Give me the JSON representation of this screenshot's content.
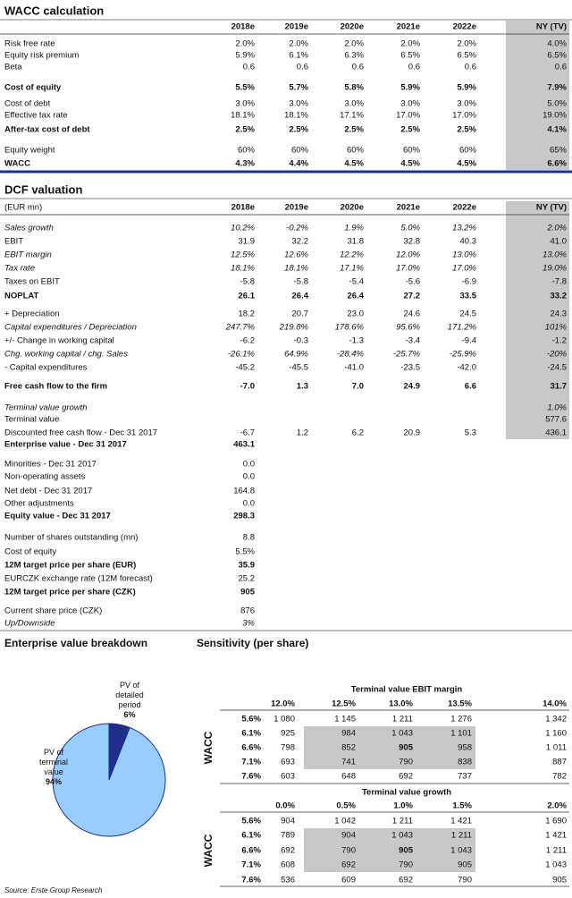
{
  "wacc": {
    "title": "WACC calculation",
    "columns": [
      "2018e",
      "2019e",
      "2020e",
      "2021e",
      "2022e",
      "NY (TV)"
    ],
    "rows": [
      {
        "label": "Risk free rate",
        "values": [
          "2.0%",
          "2.0%",
          "2.0%",
          "2.0%",
          "2.0%",
          "4.0%"
        ]
      },
      {
        "label": "Equity risk premium",
        "values": [
          "5.9%",
          "6.1%",
          "6.3%",
          "6.5%",
          "6.5%",
          "6.5%"
        ]
      },
      {
        "label": "Beta",
        "values": [
          "0.6",
          "0.6",
          "0.6",
          "0.6",
          "0.6",
          "0.6"
        ]
      },
      {
        "label": "Cost of equity",
        "values": [
          "5.5%",
          "5.7%",
          "5.8%",
          "5.9%",
          "5.9%",
          "7.9%"
        ]
      },
      {
        "label": "Cost of debt",
        "values": [
          "3.0%",
          "3.0%",
          "3.0%",
          "3.0%",
          "3.0%",
          "5.0%"
        ]
      },
      {
        "label": "Effective tax rate",
        "values": [
          "18.1%",
          "18.1%",
          "17.1%",
          "17.0%",
          "17.0%",
          "19.0%"
        ]
      },
      {
        "label": "After-tax cost of debt",
        "values": [
          "2.5%",
          "2.5%",
          "2.5%",
          "2.5%",
          "2.5%",
          "4.1%"
        ]
      },
      {
        "label": "Equity weight",
        "values": [
          "60%",
          "60%",
          "60%",
          "60%",
          "60%",
          "65%"
        ]
      },
      {
        "label": "WACC",
        "values": [
          "4.3%",
          "4.4%",
          "4.5%",
          "4.5%",
          "4.5%",
          "6.6%"
        ]
      }
    ]
  },
  "dcf": {
    "title": "DCF valuation",
    "unit": "(EUR mn)",
    "columns": [
      "2018e",
      "2019e",
      "2020e",
      "2021e",
      "2022e",
      "NY (TV)"
    ],
    "rows": [
      {
        "label": "Sales growth",
        "values": [
          "10.2%",
          "-0.2%",
          "1.9%",
          "5.0%",
          "13.2%",
          "2.0%"
        ]
      },
      {
        "label": "EBIT",
        "values": [
          "31.9",
          "32.2",
          "31.8",
          "32.8",
          "40.3",
          "41.0"
        ]
      },
      {
        "label": "EBIT margin",
        "values": [
          "12.5%",
          "12.6%",
          "12.2%",
          "12.0%",
          "13.0%",
          "13.0%"
        ]
      },
      {
        "label": "Tax rate",
        "values": [
          "18.1%",
          "18.1%",
          "17.1%",
          "17.0%",
          "17.0%",
          "19.0%"
        ]
      },
      {
        "label": "Taxes on EBIT",
        "values": [
          "-5.8",
          "-5.8",
          "-5.4",
          "-5.6",
          "-6.9",
          "-7.8"
        ]
      },
      {
        "label": "NOPLAT",
        "values": [
          "26.1",
          "26.4",
          "26.4",
          "27.2",
          "33.5",
          "33.2"
        ]
      },
      {
        "label": "+ Depreciation",
        "values": [
          "18.2",
          "20.7",
          "23.0",
          "24.6",
          "24.5",
          "24.3"
        ]
      },
      {
        "label": "Capital expenditures / Depreciation",
        "values": [
          "247.7%",
          "219.8%",
          "178.6%",
          "95.6%",
          "171.2%",
          "101%"
        ]
      },
      {
        "label": "+/- Change in working capital",
        "values": [
          "-6.2",
          "-0.3",
          "-1.3",
          "-3.4",
          "-9.4",
          "-1.2"
        ]
      },
      {
        "label": "Chg. working capital / chg. Sales",
        "values": [
          "-26.1%",
          "64.9%",
          "-28.4%",
          "-25.7%",
          "-25.9%",
          "-20%"
        ]
      },
      {
        "label": "- Capital expenditures",
        "values": [
          "-45.2",
          "-45.5",
          "-41.0",
          "-23.5",
          "-42.0",
          "-24.5"
        ]
      },
      {
        "label": "Free cash flow to the firm",
        "values": [
          "-7.0",
          "1.3",
          "7.0",
          "24.9",
          "6.6",
          "31.7"
        ]
      },
      {
        "label": "Terminal value growth",
        "values": [
          null,
          null,
          null,
          null,
          null,
          "1.0%"
        ]
      },
      {
        "label": "Terminal value",
        "values": [
          null,
          null,
          null,
          null,
          null,
          "577.6"
        ]
      },
      {
        "label": "Discounted free cash flow - Dec 31 2017",
        "values": [
          "-6.7",
          "1.2",
          "6.2",
          "20.9",
          "5.3",
          "436.1"
        ]
      }
    ],
    "summary": [
      {
        "label": "Enterprise value - Dec 31 2017",
        "value": "463.1"
      },
      {
        "label": "Minorities - Dec 31 2017",
        "value": "0.0"
      },
      {
        "label": "Non-operating assets",
        "value": "0.0"
      },
      {
        "label": "Net debt - Dec 31 2017",
        "value": "164.8"
      },
      {
        "label": "Other adjustments",
        "value": "0.0"
      },
      {
        "label": "Equity value - Dec 31 2017",
        "value": "298.3"
      },
      {
        "label": "Number of shares outstanding (mn)",
        "value": "8.8"
      },
      {
        "label": "Cost of equity",
        "value": "5.5%"
      },
      {
        "label": "12M target price per share (EUR)",
        "value": "35.9"
      },
      {
        "label": "EURCZK exchange rate (12M forecast)",
        "value": "25.2"
      },
      {
        "label": "12M target price per share (CZK)",
        "value": "905"
      },
      {
        "label": "Current share price (CZK)",
        "value": "876"
      },
      {
        "label": "Up/Downside",
        "value": "3%"
      }
    ]
  },
  "ev_breakdown": {
    "title": "Enterprise value breakdown",
    "slices": [
      {
        "label": "PV of detailed period",
        "value": 6,
        "value_label": "6%",
        "color": "#1f2f8c"
      },
      {
        "label": "PV of terminal value",
        "value": 94,
        "value_label": "94%",
        "color": "#99ccff"
      }
    ]
  },
  "sensitivity": {
    "title": "Sensitivity (per share)",
    "tables": [
      {
        "title": "Terminal value EBIT margin",
        "row_axis": "WACC",
        "columns": [
          "12.0%",
          "12.5%",
          "13.0%",
          "13.5%",
          "14.0%"
        ],
        "rows": [
          {
            "label": "5.6%",
            "values": [
              "1 080",
              "1 145",
              "1 211",
              "1 276",
              "1 342"
            ]
          },
          {
            "label": "6.1%",
            "values": [
              "925",
              "984",
              "1 043",
              "1 101",
              "1 160"
            ]
          },
          {
            "label": "6.6%",
            "values": [
              "798",
              "852",
              "905",
              "958",
              "1 011"
            ]
          },
          {
            "label": "7.1%",
            "values": [
              "693",
              "741",
              "790",
              "838",
              "887"
            ]
          },
          {
            "label": "7.6%",
            "values": [
              "603",
              "648",
              "692",
              "737",
              "782"
            ]
          }
        ]
      },
      {
        "title": "Terminal value growth",
        "row_axis": "WACC",
        "columns": [
          "0.0%",
          "0.5%",
          "1.0%",
          "1.5%",
          "2.0%"
        ],
        "rows": [
          {
            "label": "5.6%",
            "values": [
              "904",
              "1 042",
              "1 211",
              "1 421",
              "1 690"
            ]
          },
          {
            "label": "6.1%",
            "values": [
              "789",
              "904",
              "1 043",
              "1 211",
              "1 421"
            ]
          },
          {
            "label": "6.6%",
            "values": [
              "692",
              "790",
              "905",
              "1 043",
              "1 211"
            ]
          },
          {
            "label": "7.1%",
            "values": [
              "608",
              "692",
              "790",
              "905",
              "1 043"
            ]
          },
          {
            "label": "7.6%",
            "values": [
              "536",
              "609",
              "692",
              "790",
              "905"
            ]
          }
        ]
      }
    ]
  },
  "source": "Source: Erste Group Research"
}
